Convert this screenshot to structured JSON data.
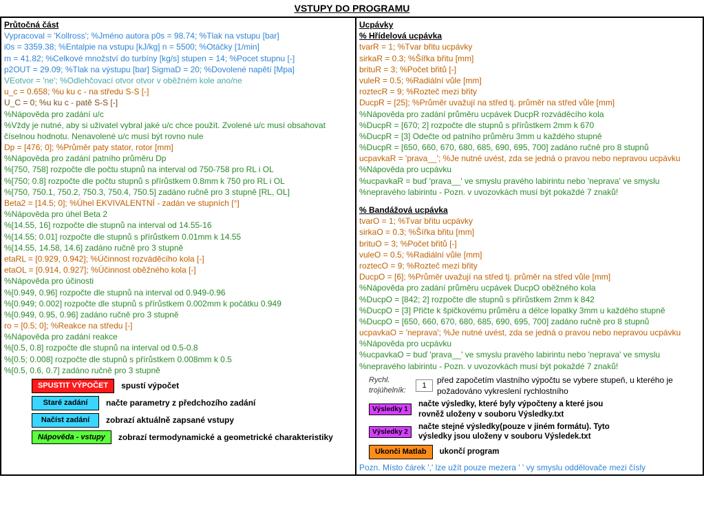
{
  "page": {
    "title": "VSTUPY DO PROGRAMU"
  },
  "left": {
    "header": "Průtočná část",
    "lines": [
      {
        "cls": "c-blue",
        "text": "Vypracoval = 'Kollross';  %Jméno autora                       p0s = 98.74;  %Tlak na vstupu [bar]"
      },
      {
        "cls": "c-blue",
        "text": "i0s = 3359.38;  %Entalpie na vstupu [kJ/kg]             n = 5500;  %Otáčky [1/min]"
      },
      {
        "cls": "c-blue",
        "text": "m = 41.82;  %Celkové množství do turbíny [kg/s]     stupen = 14;  %Pocet stupnu [-]"
      },
      {
        "cls": "c-blue",
        "text": "p2OUT = 29.09;  %Tlak na výstupu [bar]                  SigmaD = 20; %Dovolené napětí [Mpa]"
      },
      {
        "cls": "c-teal",
        "text": "VEotvor = 'ne'; %Odlehčovací otvor otvor v oběžném kole ano/ne"
      },
      {
        "cls": "c-orange",
        "text": "u_c = 0.658;  %u ku c - na středu S-S [-]"
      },
      {
        "cls": "c-brown",
        "text": "U_C = 0;  %u ku c - patě S-S [-]"
      },
      {
        "cls": "c-green",
        "text": "%Nápověda pro zadání u/c"
      },
      {
        "cls": "c-green",
        "text": "%Vždy je nutné, aby si uživatel vybral jaké u/c chce použít. Zvolené u/c musí obsahovat"
      },
      {
        "cls": "c-green",
        "text": "číselnou hodnotu. Nenavolené u/c musí být rovno nule"
      },
      {
        "cls": "c-orange",
        "text": "Dp = [476; 0]; %Průměr paty stator, rotor [mm]"
      },
      {
        "cls": "c-green",
        "text": "%Nápověda pro zadání patního průměru Dp"
      },
      {
        "cls": "c-green",
        "text": "%[750, 758] rozpočte dle počtu stupnů na interval od 750-758 pro RL i OL"
      },
      {
        "cls": "c-green",
        "text": "%[750; 0.8] rozpočte dle počtu stupnů s přírůstkem 0.8mm k 750 pro RL i OL"
      },
      {
        "cls": "c-green",
        "text": "%[750, 750.1, 750.2, 750.3, 750.4, 750.5] zadáno ručně pro 3 stupně [RL, OL]"
      },
      {
        "cls": "c-orange",
        "text": "Beta2 = [14.5; 0]; %Úhel EKVIVALENTNÍ - zadán ve stupních [°]"
      },
      {
        "cls": "c-green",
        "text": "%Nápověda pro úhel Beta 2"
      },
      {
        "cls": "c-green",
        "text": "%[14.55, 16] rozpočte dle stupnů na interval od 14.55-16"
      },
      {
        "cls": "c-green",
        "text": "%[14.55; 0.01] rozpočte dle stupnů s přírůstkem 0.01mm k 14.55"
      },
      {
        "cls": "c-green",
        "text": "%[14.55, 14.58, 14.6] zadáno ručně pro 3 stupně"
      },
      {
        "cls": "c-orange",
        "text": "etaRL = [0.929, 0.942]; %Účinnost rozváděcího kola [-]"
      },
      {
        "cls": "c-orange",
        "text": "etaOL = [0.914, 0.927]; %Účinnost oběžného kola [-]"
      },
      {
        "cls": "c-green",
        "text": "%Nápověda pro účinosti"
      },
      {
        "cls": "c-green",
        "text": "%[0.949, 0.96] rozpočte dle stupnů na interval od 0.949-0.96"
      },
      {
        "cls": "c-green",
        "text": "%[0.949; 0.002] rozpočte dle stupnů s přírůstkem 0.002mm k počátku 0.949"
      },
      {
        "cls": "c-green",
        "text": "%[0.949, 0.95, 0.96] zadáno ručně pro 3 stupně"
      },
      {
        "cls": "c-orange",
        "text": "ro = [0.5; 0]; %Reakce na středu [-]"
      },
      {
        "cls": "c-green",
        "text": "%Nápověda pro zadání reakce"
      },
      {
        "cls": "c-green",
        "text": "%[0.5, 0.8] rozpočte dle stupnů na interval od 0.5-0.8"
      },
      {
        "cls": "c-green",
        "text": "%[0.5; 0.008] rozpočte dle stupnů s přírůstkem 0.008mm k 0.5"
      },
      {
        "cls": "c-green",
        "text": "%[0.5, 0.6, 0.7] zadáno ručně pro 3 stupně"
      }
    ],
    "buttons": [
      {
        "label": "SPUSTIT VÝPOČET",
        "cls": "btn-red",
        "name": "run-button",
        "desc": "spustí výpočet"
      },
      {
        "label": "Staré zadání",
        "cls": "btn-cyan",
        "name": "old-input-button",
        "desc": "načte parametry z předchozího zadání"
      },
      {
        "label": "Načíst zadání",
        "cls": "btn-cyan",
        "name": "load-input-button",
        "desc": "zobrazí aktuálně zapsané vstupy"
      },
      {
        "label": "Nápověda - vstupy",
        "cls": "btn-lime",
        "name": "help-inputs-button",
        "desc": "zobrazí termodynamické a geometrické charakteristiky"
      }
    ]
  },
  "right": {
    "header": "Ucpávky",
    "sub1": "% Hřídelová ucpávka",
    "sub2": "% Bandážová ucpávka",
    "block1": [
      {
        "cls": "c-orange",
        "text": "tvarR = 1; %Tvar břitu ucpávky"
      },
      {
        "cls": "c-orange",
        "text": "sirkaR = 0.3; %Šířka břitu [mm]"
      },
      {
        "cls": "c-orange",
        "text": "brituR = 3; %Počet břitů [-]"
      },
      {
        "cls": "c-orange",
        "text": "vuleR = 0.5; %Radiální vůle [mm]"
      },
      {
        "cls": "c-orange",
        "text": "roztecR = 9; %Rozteč mezi břity"
      },
      {
        "cls": "c-orange",
        "text": "DucpR = [25]; %Průměr uvažují na střed tj. průměr na střed vůle [mm]"
      },
      {
        "cls": "c-green",
        "text": "%Nápověda pro zadání průměru ucpávek DucpR rozváděcího kola"
      },
      {
        "cls": "c-green",
        "text": "%DucpR = [670; 2] rozpočte dle stupnů s přírůstkem 2mm k 670"
      },
      {
        "cls": "c-green",
        "text": "%DucpR = [3] Odečte od patního průměru 3mm u každého stupně"
      },
      {
        "cls": "c-green",
        "text": "%DucpR = [650, 660, 670, 680, 685, 690, 695, 700] zadáno ručně pro 8 stupnů"
      },
      {
        "cls": "c-orange",
        "text": "ucpavkaR = 'prava__'; %Je nutné uvést, zda se jedná o pravou nebo nepravou ucpávku"
      },
      {
        "cls": "c-green",
        "text": "%Nápověda pro ucpávku"
      },
      {
        "cls": "c-green",
        "text": "%ucpavkaR = buď 'prava__' ve smyslu pravého labirintu nebo 'neprava' ve smyslu"
      },
      {
        "cls": "c-green",
        "text": "%nepravého labirintu - Pozn. v uvozovkách musí být pokaždé 7 znaků!"
      }
    ],
    "block2": [
      {
        "cls": "c-orange",
        "text": "tvarO = 1; %Tvar břitu ucpávky"
      },
      {
        "cls": "c-orange",
        "text": "sirkaO = 0.3; %Šířka břitu [mm]"
      },
      {
        "cls": "c-orange",
        "text": "brituO = 3; %Počet břitů [-]"
      },
      {
        "cls": "c-orange",
        "text": "vuleO = 0.5; %Radiální vůle [mm]"
      },
      {
        "cls": "c-orange",
        "text": "roztecO = 9; %Rozteč mezi břity"
      },
      {
        "cls": "c-orange",
        "text": "DucpO = [6]; %Průměr uvažují na střed tj. průměr na střed vůle [mm]"
      },
      {
        "cls": "c-green",
        "text": "%Nápověda pro zadání průměru ucpávek DucpO oběžného kola"
      },
      {
        "cls": "c-green",
        "text": "%DucpO = [842; 2] rozpočte dle stupnů s přírůstkem 2mm k 842"
      },
      {
        "cls": "c-green",
        "text": "%DucpO = [3] Přičte k špičkovému průměru a délce lopatky 3mm u každého stupně"
      },
      {
        "cls": "c-green",
        "text": "%DucpO = [650, 660, 670, 680, 685, 690, 695, 700] zadáno ručně pro 8 stupnů"
      },
      {
        "cls": "c-orange",
        "text": "ucpavkaO = 'neprava'; %Je nutné uvést, zda se jedná o pravou nebo nepravou ucpávku"
      },
      {
        "cls": "c-green",
        "text": "%Nápověda pro ucpávku"
      },
      {
        "cls": "c-green",
        "text": "%ucpavkaO = buď 'prava__' ve smyslu pravého labirintu nebo 'neprava' ve smyslu"
      },
      {
        "cls": "c-green",
        "text": "%nepravého labirintu - Pozn. v uvozovkách musí být pokaždé 7 znaků!"
      }
    ],
    "triangle": {
      "label": "Rychl. trojúhelník:",
      "value": "1",
      "desc": "před započetím vlastního výpočtu se vybere stupeň, u kterého je požadováno vykreslení rychlostního"
    },
    "buttons": [
      {
        "label": "Výsledky 1",
        "cls": "btn-mag",
        "name": "results1-button",
        "desc": "načte výsledky, které byly výpočteny a které jsou rovněž uloženy v souboru Výsledky.txt"
      },
      {
        "label": "Výsledky 2",
        "cls": "btn-mag",
        "name": "results2-button",
        "desc": "načte stejné výsledky(pouze v jiném formátu). Tyto výsledky jsou  uloženy v souboru Výsledek.txt"
      },
      {
        "label": "Ukonči Matlab",
        "cls": "btn-orange",
        "name": "quit-matlab-button",
        "desc": "ukončí program"
      }
    ],
    "note": "Pozn. Místo čárek ',' lze užít pouze mezera ' ' vy smyslu oddělovače mezi čísly"
  }
}
